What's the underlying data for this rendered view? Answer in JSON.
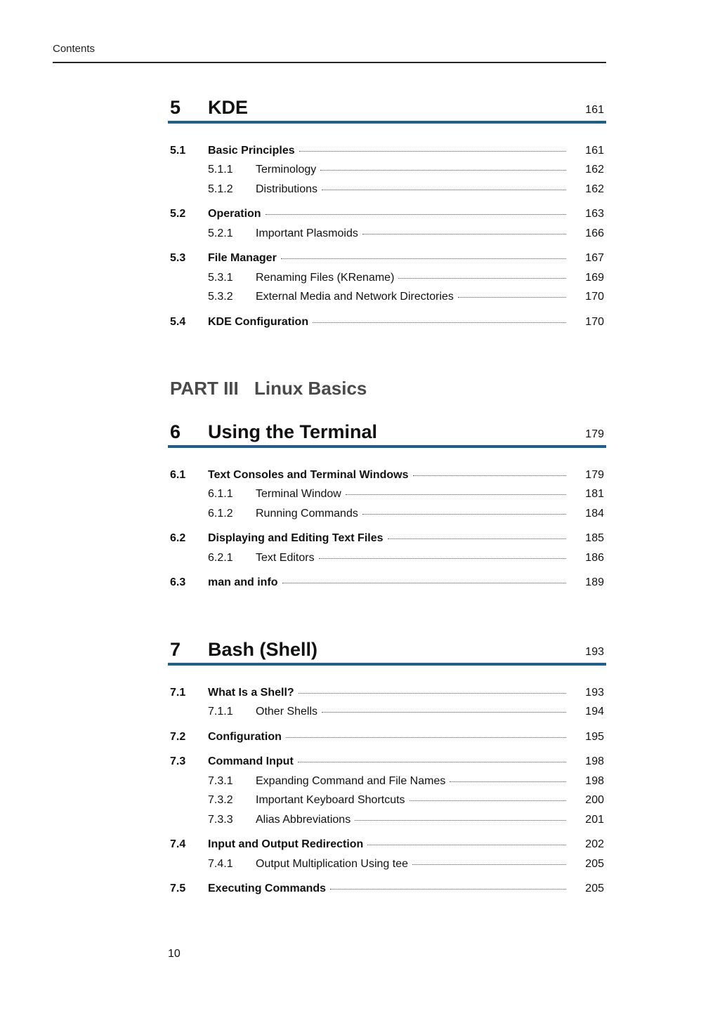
{
  "header": {
    "running_title": "Contents"
  },
  "footer": {
    "page_number": "10"
  },
  "colors": {
    "accent_bar": "#1f5f8b",
    "part_text": "#4a4a4a"
  },
  "part": {
    "number": "PART III",
    "title": "Linux Basics"
  },
  "chapters": [
    {
      "number": "5",
      "title": "KDE",
      "page": "161",
      "entries": [
        {
          "level": 1,
          "number": "5.1",
          "title": "Basic Principles",
          "page": "161"
        },
        {
          "level": 2,
          "number": "5.1.1",
          "title": "Terminology",
          "page": "162"
        },
        {
          "level": 2,
          "number": "5.1.2",
          "title": "Distributions",
          "page": "162"
        },
        {
          "level": 1,
          "number": "5.2",
          "title": "Operation",
          "page": "163"
        },
        {
          "level": 2,
          "number": "5.2.1",
          "title": "Important Plasmoids",
          "page": "166"
        },
        {
          "level": 1,
          "number": "5.3",
          "title": "File Manager",
          "page": "167"
        },
        {
          "level": 2,
          "number": "5.3.1",
          "title": "Renaming Files (KRename)",
          "page": "169"
        },
        {
          "level": 2,
          "number": "5.3.2",
          "title": "External Media and Network Directories",
          "page": "170"
        },
        {
          "level": 1,
          "number": "5.4",
          "title": "KDE Configuration",
          "page": "170"
        }
      ]
    },
    {
      "number": "6",
      "title": "Using the Terminal",
      "page": "179",
      "entries": [
        {
          "level": 1,
          "number": "6.1",
          "title": "Text Consoles and Terminal Windows",
          "page": "179"
        },
        {
          "level": 2,
          "number": "6.1.1",
          "title": "Terminal Window",
          "page": "181"
        },
        {
          "level": 2,
          "number": "6.1.2",
          "title": "Running Commands",
          "page": "184"
        },
        {
          "level": 1,
          "number": "6.2",
          "title": "Displaying and Editing Text Files",
          "page": "185"
        },
        {
          "level": 2,
          "number": "6.2.1",
          "title": "Text Editors",
          "page": "186"
        },
        {
          "level": 1,
          "number": "6.3",
          "title": "man and info",
          "page": "189"
        }
      ]
    },
    {
      "number": "7",
      "title": "Bash (Shell)",
      "page": "193",
      "entries": [
        {
          "level": 1,
          "number": "7.1",
          "title": "What Is a Shell?",
          "page": "193"
        },
        {
          "level": 2,
          "number": "7.1.1",
          "title": "Other Shells",
          "page": "194"
        },
        {
          "level": 1,
          "number": "7.2",
          "title": "Configuration",
          "page": "195"
        },
        {
          "level": 1,
          "number": "7.3",
          "title": "Command Input",
          "page": "198"
        },
        {
          "level": 2,
          "number": "7.3.1",
          "title": "Expanding Command and File Names",
          "page": "198"
        },
        {
          "level": 2,
          "number": "7.3.2",
          "title": "Important Keyboard Shortcuts",
          "page": "200"
        },
        {
          "level": 2,
          "number": "7.3.3",
          "title": "Alias Abbreviations",
          "page": "201"
        },
        {
          "level": 1,
          "number": "7.4",
          "title": "Input and Output Redirection",
          "page": "202"
        },
        {
          "level": 2,
          "number": "7.4.1",
          "title": "Output Multiplication Using tee",
          "page": "205"
        },
        {
          "level": 1,
          "number": "7.5",
          "title": "Executing Commands",
          "page": "205"
        }
      ]
    }
  ]
}
